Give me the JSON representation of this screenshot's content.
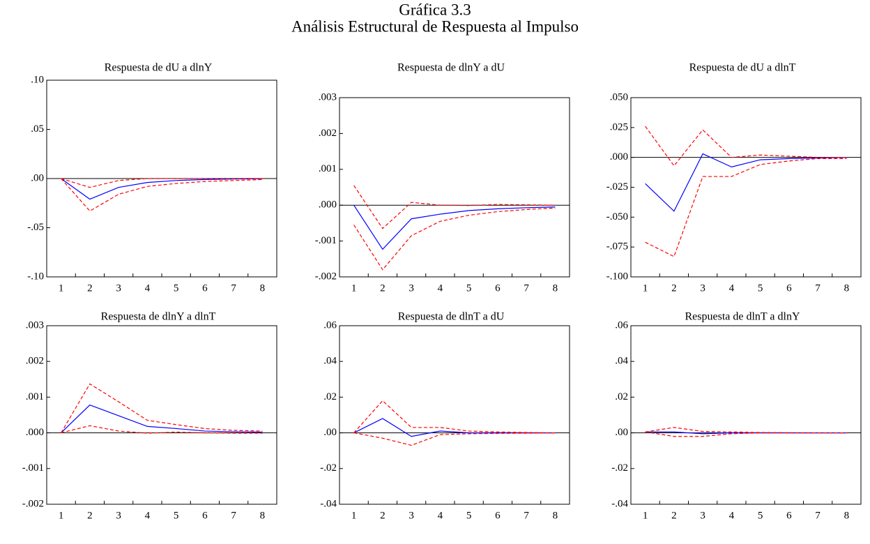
{
  "title": "Gráfica 3.3",
  "subtitle": "Análisis Estructural de Respuesta al Impulso",
  "chart_data": [
    {
      "type": "line",
      "title": "Respuesta de dU a dlnY",
      "categories": [
        "1",
        "2",
        "3",
        "4",
        "5",
        "6",
        "7",
        "8"
      ],
      "ylim": [
        -0.1,
        0.1
      ],
      "yticks": [
        {
          "value": 0.1,
          "label": ".10"
        },
        {
          "value": 0.05,
          "label": ".05"
        },
        {
          "value": 0,
          "label": ".00"
        },
        {
          "value": -0.05,
          "label": "-.05"
        },
        {
          "value": -0.1,
          "label": "-.10"
        }
      ],
      "series": [
        {
          "color": "#0000ff",
          "values": [
            0,
            -0.021,
            -0.009,
            -0.004,
            -0.002,
            -0.001,
            -0.0005,
            -0.0002
          ]
        },
        {
          "color": "#ff0000",
          "dashed": true,
          "values": [
            0,
            -0.009,
            -0.002,
            0,
            0,
            0,
            0,
            0
          ]
        },
        {
          "color": "#ff0000",
          "dashed": true,
          "values": [
            0,
            -0.033,
            -0.016,
            -0.008,
            -0.005,
            -0.003,
            -0.002,
            -0.001
          ]
        }
      ]
    },
    {
      "type": "line",
      "title": "Respuesta de dlnY a dU",
      "categories": [
        "1",
        "2",
        "3",
        "4",
        "5",
        "6",
        "7",
        "8"
      ],
      "ylim": [
        -0.002,
        0.003
      ],
      "yticks": [
        {
          "value": 0.003,
          "label": ".003"
        },
        {
          "value": 0.002,
          "label": ".002"
        },
        {
          "value": 0.001,
          "label": ".001"
        },
        {
          "value": 0,
          "label": ".000"
        },
        {
          "value": -0.001,
          "label": "-.001"
        },
        {
          "value": -0.002,
          "label": "-.002"
        }
      ],
      "series": [
        {
          "color": "#0000ff",
          "values": [
            0,
            -0.00123,
            -0.00038,
            -0.00025,
            -0.00015,
            -0.0001,
            -7e-05,
            -5e-05
          ]
        },
        {
          "color": "#ff0000",
          "dashed": true,
          "values": [
            0.00055,
            -0.00065,
            8e-05,
            0,
            -1e-05,
            2e-05,
            1e-05,
            0
          ]
        },
        {
          "color": "#ff0000",
          "dashed": true,
          "values": [
            -0.00055,
            -0.0018,
            -0.00085,
            -0.00045,
            -0.00028,
            -0.00018,
            -0.00012,
            -8e-05
          ]
        }
      ]
    },
    {
      "type": "line",
      "title": "Respuesta de dU a dlnT",
      "categories": [
        "1",
        "2",
        "3",
        "4",
        "5",
        "6",
        "7",
        "8"
      ],
      "ylim": [
        -0.1,
        0.05
      ],
      "yticks": [
        {
          "value": 0.05,
          "label": ".050"
        },
        {
          "value": 0.025,
          "label": ".025"
        },
        {
          "value": 0,
          "label": ".000"
        },
        {
          "value": -0.025,
          "label": "-.025"
        },
        {
          "value": -0.05,
          "label": "-.050"
        },
        {
          "value": -0.075,
          "label": "-.075"
        },
        {
          "value": -0.1,
          "label": "-.100"
        }
      ],
      "series": [
        {
          "color": "#0000ff",
          "values": [
            -0.022,
            -0.045,
            0.003,
            -0.008,
            -0.002,
            -0.001,
            -0.0005,
            0
          ]
        },
        {
          "color": "#ff0000",
          "dashed": true,
          "values": [
            0.026,
            -0.007,
            0.023,
            0,
            0.002,
            0.001,
            0,
            0
          ]
        },
        {
          "color": "#ff0000",
          "dashed": true,
          "values": [
            -0.071,
            -0.083,
            -0.016,
            -0.016,
            -0.006,
            -0.003,
            -0.001,
            -0.001
          ]
        }
      ]
    },
    {
      "type": "line",
      "title": "Respuesta de dlnY a dlnT",
      "categories": [
        "1",
        "2",
        "3",
        "4",
        "5",
        "6",
        "7",
        "8"
      ],
      "ylim": [
        -0.002,
        0.003
      ],
      "yticks": [
        {
          "value": 0.003,
          "label": ".003"
        },
        {
          "value": 0.002,
          "label": ".002"
        },
        {
          "value": 0.001,
          "label": ".001"
        },
        {
          "value": 0,
          "label": ".000"
        },
        {
          "value": -0.001,
          "label": "-.001"
        },
        {
          "value": -0.002,
          "label": "-.002"
        }
      ],
      "series": [
        {
          "color": "#0000ff",
          "values": [
            0,
            0.00078,
            0.00048,
            0.00018,
            0.00012,
            5e-05,
            3e-05,
            2e-05
          ]
        },
        {
          "color": "#ff0000",
          "dashed": true,
          "values": [
            0,
            0.00137,
            0.00087,
            0.00035,
            0.00023,
            0.00012,
            7e-05,
            5e-05
          ]
        },
        {
          "color": "#ff0000",
          "dashed": true,
          "values": [
            0,
            0.0002,
            5e-05,
            -1e-05,
            2e-05,
            0,
            -1e-05,
            -1e-05
          ]
        }
      ]
    },
    {
      "type": "line",
      "title": "Respuesta de dlnT a dU",
      "categories": [
        "1",
        "2",
        "3",
        "4",
        "5",
        "6",
        "7",
        "8"
      ],
      "ylim": [
        -0.04,
        0.06
      ],
      "yticks": [
        {
          "value": 0.06,
          "label": ".06"
        },
        {
          "value": 0.04,
          "label": ".04"
        },
        {
          "value": 0.02,
          "label": ".02"
        },
        {
          "value": 0,
          "label": ".00"
        },
        {
          "value": -0.02,
          "label": "-.02"
        },
        {
          "value": -0.04,
          "label": "-.04"
        }
      ],
      "series": [
        {
          "color": "#0000ff",
          "values": [
            0,
            0.008,
            -0.002,
            0.001,
            0,
            0,
            0,
            0
          ]
        },
        {
          "color": "#ff0000",
          "dashed": true,
          "values": [
            0,
            0.018,
            0.003,
            0.003,
            0.001,
            0.0005,
            0.0002,
            0
          ]
        },
        {
          "color": "#ff0000",
          "dashed": true,
          "values": [
            0,
            -0.003,
            -0.007,
            -0.001,
            -0.0005,
            -0.0003,
            -0.0002,
            0
          ]
        }
      ]
    },
    {
      "type": "line",
      "title": "Respuesta de dlnT a dlnY",
      "categories": [
        "1",
        "2",
        "3",
        "4",
        "5",
        "6",
        "7",
        "8"
      ],
      "ylim": [
        -0.04,
        0.06
      ],
      "yticks": [
        {
          "value": 0.06,
          "label": ".06"
        },
        {
          "value": 0.04,
          "label": ".04"
        },
        {
          "value": 0.02,
          "label": ".02"
        },
        {
          "value": 0,
          "label": ".00"
        },
        {
          "value": -0.02,
          "label": "-.02"
        },
        {
          "value": -0.04,
          "label": "-.04"
        }
      ],
      "series": [
        {
          "color": "#0000ff",
          "values": [
            0.0005,
            0.0005,
            -0.0005,
            0,
            0,
            0,
            0,
            0
          ]
        },
        {
          "color": "#ff0000",
          "dashed": true,
          "values": [
            0.0005,
            0.003,
            0.0008,
            0.0005,
            0.0002,
            0.0001,
            0,
            0
          ]
        },
        {
          "color": "#ff0000",
          "dashed": true,
          "values": [
            0.0005,
            -0.002,
            -0.002,
            -0.0005,
            0,
            0,
            0,
            0
          ]
        }
      ]
    }
  ]
}
